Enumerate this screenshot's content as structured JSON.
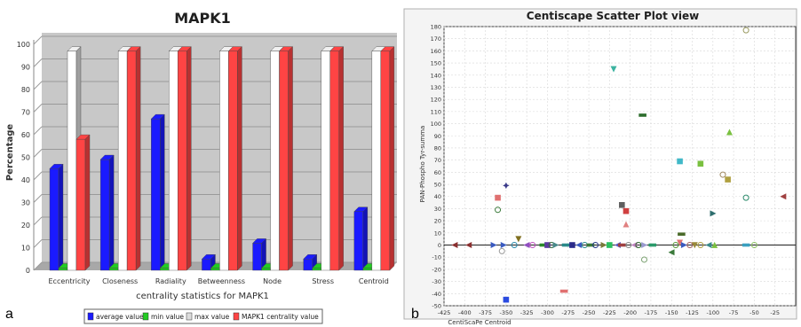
{
  "panels": {
    "a": "a",
    "b": "b"
  },
  "chart_data": [
    {
      "type": "bar",
      "title": "MAPK1",
      "xlabel": "centrality statistics for MAPK1",
      "ylabel": "Percentage",
      "ylim": [
        0,
        100
      ],
      "yticks": [
        0,
        10,
        20,
        30,
        40,
        50,
        60,
        70,
        80,
        90,
        100
      ],
      "categories": [
        "Eccentricity",
        "Closeness",
        "Radiality",
        "Betweenness",
        "Node",
        "Stress",
        "Centroid"
      ],
      "series": [
        {
          "name": "average value",
          "color": "#1a1aff",
          "values": [
            45,
            49,
            67,
            5,
            12,
            5,
            26
          ]
        },
        {
          "name": "min value",
          "color": "#22cc22",
          "values": [
            1,
            1,
            1,
            1,
            1,
            1,
            1
          ]
        },
        {
          "name": "max value",
          "color": "#ffffff",
          "values": [
            97,
            97,
            97,
            97,
            97,
            97,
            97
          ]
        },
        {
          "name": "MAPK1 centrality value",
          "color": "#ff4444",
          "values": [
            58,
            97,
            97,
            97,
            97,
            97,
            97
          ]
        }
      ],
      "legend": "bottom"
    },
    {
      "type": "scatter",
      "title": "Centiscape Scatter Plot view",
      "xlabel": "CentiScaPe Centroid",
      "ylabel": "PAN-Phospho Tyr-summa",
      "xlim": [
        -425,
        0
      ],
      "ylim": [
        -50,
        180
      ],
      "xticks": [
        -425,
        -400,
        -375,
        -350,
        -325,
        -300,
        -275,
        -250,
        -225,
        -200,
        -175,
        -150,
        -125,
        -100,
        -75,
        -50,
        -25
      ],
      "yticks": [
        -50,
        -40,
        -30,
        -20,
        -10,
        0,
        10,
        20,
        30,
        40,
        50,
        60,
        70,
        80,
        90,
        100,
        110,
        120,
        130,
        140,
        150,
        160,
        170,
        180
      ],
      "grid": "dashed",
      "points": [
        {
          "x": -220,
          "y": 145,
          "c": "#3cb3a0",
          "m": "tri-down"
        },
        {
          "x": -60,
          "y": 177,
          "c": "#9a9a60",
          "m": "circle"
        },
        {
          "x": -185,
          "y": 107,
          "c": "#2e6e2e",
          "m": "rect"
        },
        {
          "x": -80,
          "y": 93,
          "c": "#7ac040",
          "m": "tri-up"
        },
        {
          "x": -140,
          "y": 69,
          "c": "#40b8c8",
          "m": "square"
        },
        {
          "x": -115,
          "y": 67,
          "c": "#7ac040",
          "m": "square"
        },
        {
          "x": -88,
          "y": 58,
          "c": "#a08860",
          "m": "circle"
        },
        {
          "x": -82,
          "y": 54,
          "c": "#b0a040",
          "m": "square"
        },
        {
          "x": -350,
          "y": 49,
          "c": "#3a3a8a",
          "m": "star"
        },
        {
          "x": -360,
          "y": 39,
          "c": "#e07070",
          "m": "square"
        },
        {
          "x": -60,
          "y": 39,
          "c": "#2a8a6a",
          "m": "circle"
        },
        {
          "x": -15,
          "y": 40,
          "c": "#a04040",
          "m": "tri-left"
        },
        {
          "x": -210,
          "y": 33,
          "c": "#606060",
          "m": "square"
        },
        {
          "x": -205,
          "y": 28,
          "c": "#d04040",
          "m": "square"
        },
        {
          "x": -360,
          "y": 29,
          "c": "#3a7a3a",
          "m": "circle"
        },
        {
          "x": -100,
          "y": 26,
          "c": "#2e6e6e",
          "m": "tri-right"
        },
        {
          "x": -205,
          "y": 17,
          "c": "#e08080",
          "m": "tri-up"
        },
        {
          "x": -138,
          "y": 9,
          "c": "#4a6a2a",
          "m": "rect"
        },
        {
          "x": -335,
          "y": 5,
          "c": "#807020",
          "m": "tri-down"
        },
        {
          "x": -140,
          "y": 2,
          "c": "#e07070",
          "m": "tri-down"
        },
        {
          "x": -355,
          "y": -5,
          "c": "#9a9a9a",
          "m": "circle"
        },
        {
          "x": -150,
          "y": -6,
          "c": "#3a7a3a",
          "m": "tri-left"
        },
        {
          "x": -183,
          "y": -12,
          "c": "#7aa070",
          "m": "circle"
        },
        {
          "x": -280,
          "y": -38,
          "c": "#e07070",
          "m": "rect"
        },
        {
          "x": -350,
          "y": -45,
          "c": "#2a4ae0",
          "m": "square"
        }
      ],
      "baseline_points": [
        {
          "x": -412,
          "c": "#8a3030",
          "m": "tri-left"
        },
        {
          "x": -395,
          "c": "#8a3030",
          "m": "tri-left"
        },
        {
          "x": -365,
          "c": "#3a5ac0",
          "m": "tri-right"
        },
        {
          "x": -353,
          "c": "#3a5ac0",
          "m": "tri-right"
        },
        {
          "x": -340,
          "c": "#2a8aaa",
          "m": "circle"
        },
        {
          "x": -325,
          "c": "#9050c0",
          "m": "tri-left"
        },
        {
          "x": -318,
          "c": "#c050c0",
          "m": "circle"
        },
        {
          "x": -305,
          "c": "#2a8a2a",
          "m": "rect"
        },
        {
          "x": -300,
          "c": "#5a3aa0",
          "m": "square"
        },
        {
          "x": -295,
          "c": "#3a6a3a",
          "m": "circle"
        },
        {
          "x": -290,
          "c": "#4a8a8a",
          "m": "tri-right"
        },
        {
          "x": -278,
          "c": "#2a8a8a",
          "m": "rect"
        },
        {
          "x": -270,
          "c": "#2a2a8a",
          "m": "square"
        },
        {
          "x": -262,
          "c": "#3a5ac0",
          "m": "tri-left"
        },
        {
          "x": -255,
          "c": "#2a8a8a",
          "m": "circle"
        },
        {
          "x": -248,
          "c": "#3a7a3a",
          "m": "rect"
        },
        {
          "x": -242,
          "c": "#2a3a8a",
          "m": "circle"
        },
        {
          "x": -232,
          "c": "#7a7a3a",
          "m": "tri-right"
        },
        {
          "x": -225,
          "c": "#2ac060",
          "m": "square"
        },
        {
          "x": -215,
          "c": "#5a5ac0",
          "m": "tri-left"
        },
        {
          "x": -210,
          "c": "#a04040",
          "m": "rect"
        },
        {
          "x": -202,
          "c": "#8a8a8a",
          "m": "circle"
        },
        {
          "x": -195,
          "c": "#c080c0",
          "m": "tri-left"
        },
        {
          "x": -190,
          "c": "#2a6a2a",
          "m": "circle"
        },
        {
          "x": -183,
          "c": "#9a9ad0",
          "m": "tri-right"
        },
        {
          "x": -173,
          "c": "#2a9a6a",
          "m": "rect"
        },
        {
          "x": -145,
          "c": "#5a9a3a",
          "m": "circle"
        },
        {
          "x": -135,
          "c": "#3a5ac0",
          "m": "tri-right"
        },
        {
          "x": -128,
          "c": "#a06060",
          "m": "circle"
        },
        {
          "x": -122,
          "c": "#9a8a3a",
          "m": "tri-down"
        },
        {
          "x": -115,
          "c": "#b0a040",
          "m": "circle"
        },
        {
          "x": -105,
          "c": "#3a8a8a",
          "m": "tri-left"
        },
        {
          "x": -98,
          "c": "#7ac040",
          "m": "tri-up"
        },
        {
          "x": -60,
          "c": "#3aa0c0",
          "m": "rect"
        },
        {
          "x": -50,
          "c": "#8ac060",
          "m": "circle"
        }
      ]
    }
  ]
}
